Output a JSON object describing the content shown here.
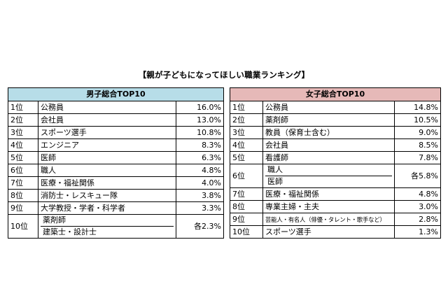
{
  "title": "【親が子どもになってほしい職業ランキング】",
  "boys": {
    "header": "男子総合TOP10",
    "rows": [
      {
        "rank": "1位",
        "job": "公務員",
        "pct": "16.0%"
      },
      {
        "rank": "2位",
        "job": "会社員",
        "pct": "13.0%"
      },
      {
        "rank": "3位",
        "job": "スポーツ選手",
        "pct": "10.8%"
      },
      {
        "rank": "4位",
        "job": "エンジニア",
        "pct": "8.3%"
      },
      {
        "rank": "5位",
        "job": "医師",
        "pct": "6.3%"
      },
      {
        "rank": "6位",
        "job": "職人",
        "pct": "4.8%"
      },
      {
        "rank": "7位",
        "job": "医療・福祉関係",
        "pct": "4.0%"
      },
      {
        "rank": "8位",
        "job": "消防士・レスキュー隊",
        "pct": "3.8%"
      },
      {
        "rank": "9位",
        "job": "大学教授・学者・科学者",
        "pct": "3.3%"
      }
    ],
    "tie": {
      "rank": "10位",
      "jobs": [
        "薬剤師",
        "建築士・設計士"
      ],
      "pct": "各2.3%"
    }
  },
  "girls": {
    "header": "女子総合TOP10",
    "rows_top": [
      {
        "rank": "1位",
        "job": "公務員",
        "pct": "14.8%"
      },
      {
        "rank": "2位",
        "job": "薬剤師",
        "pct": "10.5%"
      },
      {
        "rank": "3位",
        "job": "教員（保育士含む）",
        "pct": "9.0%"
      },
      {
        "rank": "4位",
        "job": "会社員",
        "pct": "8.5%"
      },
      {
        "rank": "5位",
        "job": "看護師",
        "pct": "7.8%"
      }
    ],
    "tie": {
      "rank": "6位",
      "jobs": [
        "職人",
        "医師"
      ],
      "pct": "各5.8%"
    },
    "rows_bottom": [
      {
        "rank": "7位",
        "job": "医療・福祉関係",
        "pct": "4.8%"
      },
      {
        "rank": "8位",
        "job": "専業主婦・主夫",
        "pct": "3.0%"
      },
      {
        "rank": "9位",
        "job": "芸能人・有名人（俳優・タレント・歌手など）",
        "pct": "2.8%"
      },
      {
        "rank": "10位",
        "job": "スポーツ選手",
        "pct": "1.3%"
      }
    ]
  }
}
